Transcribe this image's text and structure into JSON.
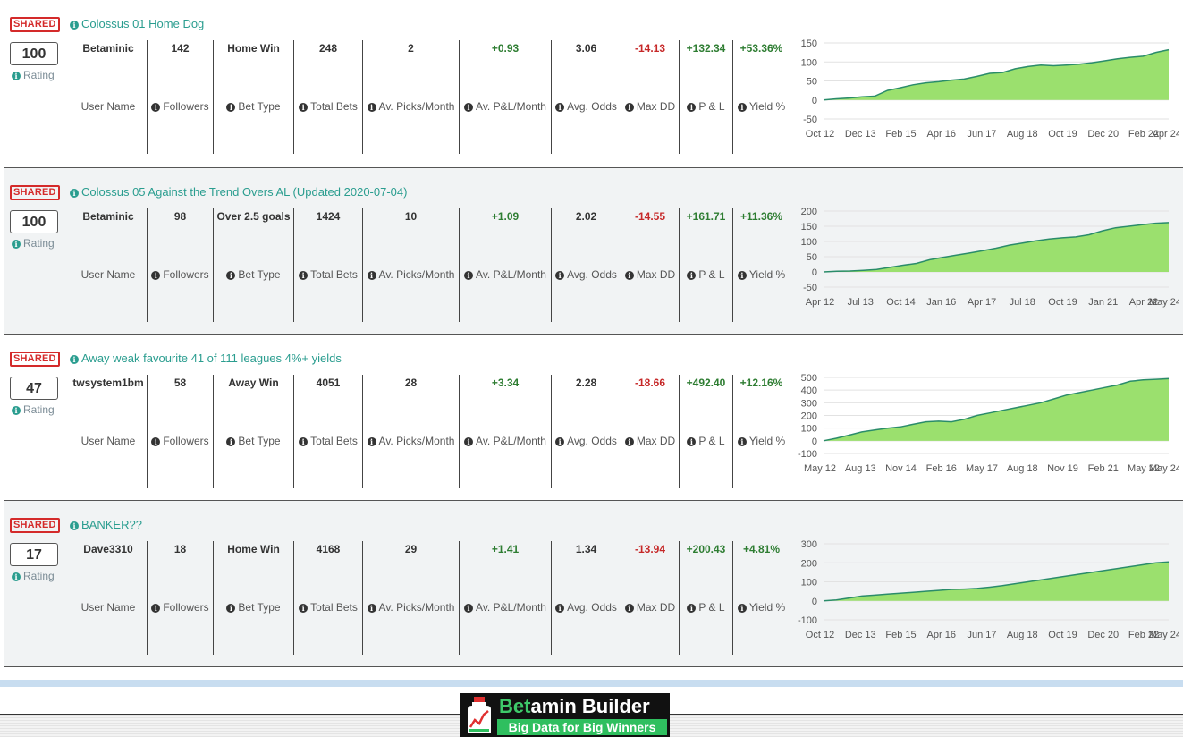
{
  "labels": {
    "shared": "SHARED",
    "rating": "Rating",
    "user_name": "User Name",
    "followers": "Followers",
    "bet_type": "Bet Type",
    "total_bets": "Total Bets",
    "av_picks": "Av. Picks/Month",
    "av_pl": "Av. P&L/Month",
    "avg_odds": "Avg. Odds",
    "max_dd": "Max DD",
    "pl": "P & L",
    "yield": "Yield %"
  },
  "colors": {
    "accent": "#2a9d8f",
    "positive": "#2e7d32",
    "negative": "#c62828",
    "chart_fill": "#9be06e",
    "chart_line": "#2a8c6a"
  },
  "systems": [
    {
      "title": "Colossus 01 Home Dog",
      "rating": "100",
      "user_name": "Betaminic",
      "followers": "142",
      "bet_type": "Home Win",
      "total_bets": "248",
      "av_picks": "2",
      "av_pl": "+0.93",
      "avg_odds": "3.06",
      "max_dd": "-14.13",
      "pl": "+132.34",
      "yield": "+53.36%",
      "chart": {
        "y_ticks": [
          "150",
          "100",
          "50",
          "0",
          "-50"
        ],
        "x_ticks": [
          "Oct 12",
          "Dec 13",
          "Feb 15",
          "Apr 16",
          "Jun 17",
          "Aug 18",
          "Oct 19",
          "Dec 20",
          "Feb 22",
          "Apr 24"
        ],
        "ymin": -50,
        "ymax": 150,
        "values": [
          0,
          3,
          5,
          8,
          10,
          25,
          32,
          40,
          45,
          48,
          52,
          55,
          62,
          70,
          72,
          82,
          88,
          92,
          90,
          92,
          94,
          98,
          103,
          108,
          112,
          115,
          125,
          132
        ]
      }
    },
    {
      "title": "Colossus 05 Against the Trend Overs AL (Updated 2020-07-04)",
      "rating": "100",
      "user_name": "Betaminic",
      "followers": "98",
      "bet_type": "Over 2.5 goals",
      "total_bets": "1424",
      "av_picks": "10",
      "av_pl": "+1.09",
      "avg_odds": "2.02",
      "max_dd": "-14.55",
      "pl": "+161.71",
      "yield": "+11.36%",
      "chart": {
        "y_ticks": [
          "200",
          "150",
          "100",
          "50",
          "0",
          "-50"
        ],
        "x_ticks": [
          "Apr 12",
          "Jul 13",
          "Oct 14",
          "Jan 16",
          "Apr 17",
          "Jul 18",
          "Oct 19",
          "Jan 21",
          "Apr 22",
          "May 24"
        ],
        "ymin": -50,
        "ymax": 200,
        "values": [
          0,
          2,
          3,
          5,
          8,
          15,
          22,
          28,
          40,
          48,
          55,
          62,
          70,
          78,
          88,
          95,
          102,
          108,
          112,
          115,
          122,
          135,
          145,
          150,
          155,
          160,
          162
        ]
      }
    },
    {
      "title": "Away weak favourite 41 of 111 leagues 4%+ yields",
      "rating": "47",
      "user_name": "twsystem1bm",
      "followers": "58",
      "bet_type": "Away Win",
      "total_bets": "4051",
      "av_picks": "28",
      "av_pl": "+3.34",
      "avg_odds": "2.28",
      "max_dd": "-18.66",
      "pl": "+492.40",
      "yield": "+12.16%",
      "chart": {
        "y_ticks": [
          "500",
          "400",
          "300",
          "200",
          "100",
          "0",
          "-100"
        ],
        "x_ticks": [
          "May 12",
          "Aug 13",
          "Nov 14",
          "Feb 16",
          "May 17",
          "Aug 18",
          "Nov 19",
          "Feb 21",
          "May 22",
          "May 24"
        ],
        "ymin": -100,
        "ymax": 500,
        "values": [
          0,
          20,
          45,
          70,
          85,
          100,
          110,
          130,
          150,
          155,
          150,
          170,
          200,
          220,
          240,
          260,
          280,
          300,
          330,
          360,
          380,
          400,
          420,
          440,
          470,
          480,
          485,
          490
        ]
      }
    },
    {
      "title": "BANKER??",
      "rating": "17",
      "user_name": "Dave3310",
      "followers": "18",
      "bet_type": "Home Win",
      "total_bets": "4168",
      "av_picks": "29",
      "av_pl": "+1.41",
      "avg_odds": "1.34",
      "max_dd": "-13.94",
      "pl": "+200.43",
      "yield": "+4.81%",
      "chart": {
        "y_ticks": [
          "300",
          "200",
          "100",
          "0",
          "-100"
        ],
        "x_ticks": [
          "Oct 12",
          "Dec 13",
          "Feb 15",
          "Apr 16",
          "Jun 17",
          "Aug 18",
          "Oct 19",
          "Dec 20",
          "Feb 22",
          "May 24"
        ],
        "ymin": -100,
        "ymax": 300,
        "values": [
          0,
          5,
          15,
          25,
          30,
          35,
          40,
          45,
          50,
          55,
          60,
          62,
          65,
          72,
          80,
          90,
          100,
          110,
          120,
          130,
          140,
          150,
          160,
          170,
          180,
          190,
          200,
          205
        ]
      }
    }
  ],
  "footer": {
    "brand_highlight": "Bet",
    "brand_rest": "amin Builder",
    "tagline": "Big Data for Big Winners"
  }
}
